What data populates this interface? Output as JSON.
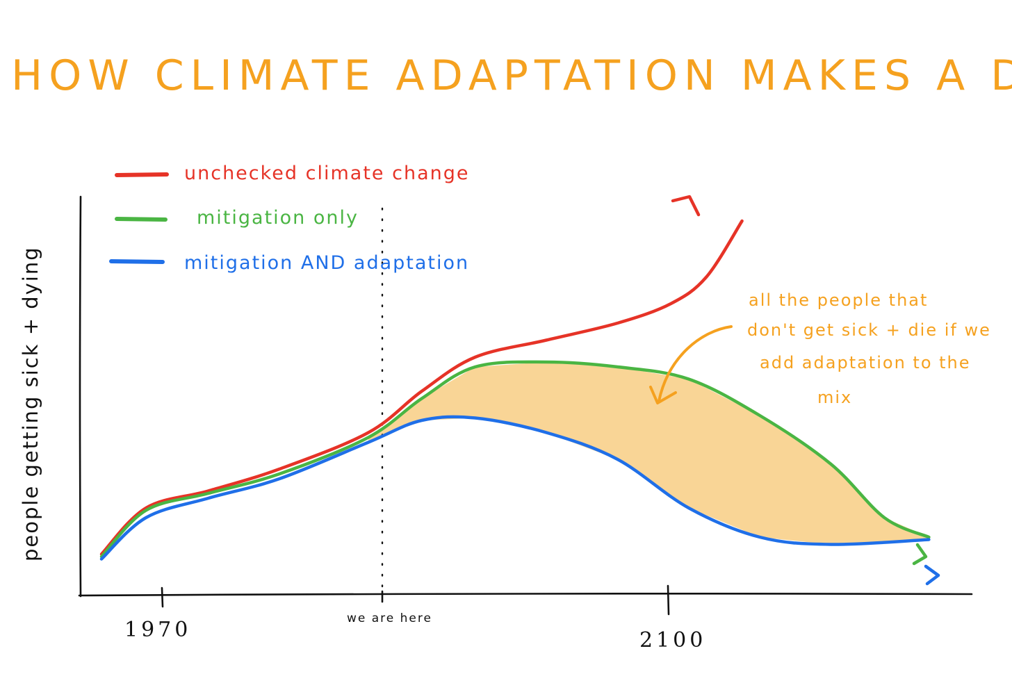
{
  "chart_data": {
    "type": "line",
    "title": "HOW CLIMATE ADAPTATION MAKES A DIFFERENCE",
    "ylabel": "people getting sick + dying",
    "xlabel": "",
    "x_ticks": [
      {
        "label": "1970"
      },
      {
        "label": "we are here"
      },
      {
        "label": "2100"
      }
    ],
    "series": [
      {
        "name": "unchecked climate change",
        "color": "#e63327",
        "values": [
          [
            0,
            0.05
          ],
          [
            0.05,
            0.24
          ],
          [
            0.12,
            0.31
          ],
          [
            0.2,
            0.4
          ],
          [
            0.3,
            0.55
          ],
          [
            0.36,
            0.72
          ],
          [
            0.42,
            0.86
          ],
          [
            0.5,
            0.93
          ],
          [
            0.58,
            1.0
          ],
          [
            0.64,
            1.08
          ],
          [
            0.68,
            1.19
          ],
          [
            0.72,
            1.42
          ]
        ],
        "arrow": true
      },
      {
        "name": "mitigation only",
        "color": "#4ab543",
        "values": [
          [
            0,
            0.04
          ],
          [
            0.05,
            0.23
          ],
          [
            0.12,
            0.3
          ],
          [
            0.2,
            0.38
          ],
          [
            0.3,
            0.53
          ],
          [
            0.36,
            0.69
          ],
          [
            0.42,
            0.82
          ],
          [
            0.5,
            0.84
          ],
          [
            0.58,
            0.82
          ],
          [
            0.66,
            0.77
          ],
          [
            0.74,
            0.62
          ],
          [
            0.82,
            0.42
          ],
          [
            0.88,
            0.2
          ],
          [
            0.93,
            0.12
          ]
        ],
        "arrow": true
      },
      {
        "name": "mitigation AND adaptation",
        "color": "#1f6fe8",
        "values": [
          [
            0,
            0.03
          ],
          [
            0.05,
            0.2
          ],
          [
            0.12,
            0.28
          ],
          [
            0.2,
            0.36
          ],
          [
            0.3,
            0.51
          ],
          [
            0.36,
            0.6
          ],
          [
            0.42,
            0.61
          ],
          [
            0.5,
            0.55
          ],
          [
            0.58,
            0.44
          ],
          [
            0.66,
            0.24
          ],
          [
            0.74,
            0.12
          ],
          [
            0.82,
            0.09
          ],
          [
            0.93,
            0.11
          ]
        ],
        "arrow": true
      }
    ],
    "shaded_region": {
      "between": [
        "mitigation only",
        "mitigation AND adaptation"
      ],
      "color": "#f9d596"
    },
    "annotation": {
      "lines": [
        "all the people that",
        "don't get sick + die if we",
        "add adaptation to the",
        "mix"
      ],
      "color": "#f5a11f"
    },
    "marker_line": {
      "at": "we are here",
      "style": "dotted"
    },
    "legend_placement": "top-left",
    "grid": false
  }
}
